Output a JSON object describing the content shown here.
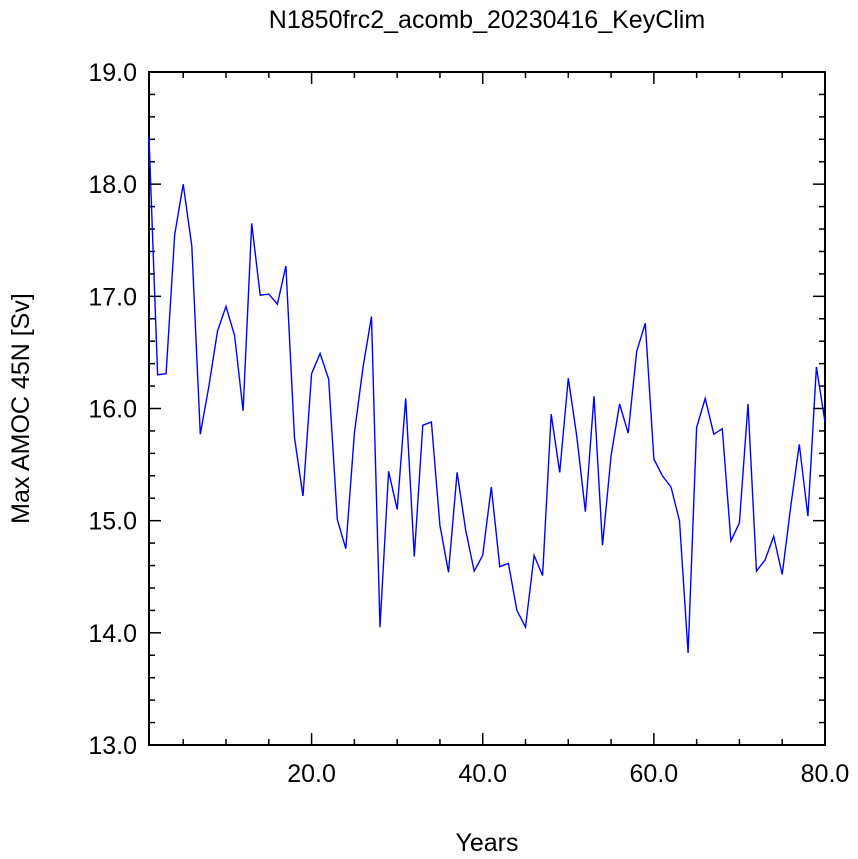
{
  "chart_data": {
    "type": "line",
    "title": "N1850frc2_acomb_20230416_KeyClim",
    "xlabel": "Years",
    "ylabel": "Max AMOC 45N [Sv]",
    "xlim": [
      1,
      80
    ],
    "ylim": [
      13.0,
      19.0
    ],
    "xticks": [
      20,
      40,
      60,
      80
    ],
    "xtick_labels": [
      "20.0",
      "40.0",
      "60.0",
      "80.0"
    ],
    "yticks": [
      13,
      14,
      15,
      16,
      17,
      18,
      19
    ],
    "ytick_labels": [
      "13.0",
      "14.0",
      "15.0",
      "16.0",
      "17.0",
      "18.0",
      "19.0"
    ],
    "grid": false,
    "series": [
      {
        "color": "#0000ff",
        "x": [
          1,
          2,
          3,
          4,
          5,
          6,
          7,
          8,
          9,
          10,
          11,
          12,
          13,
          14,
          15,
          16,
          17,
          18,
          19,
          20,
          21,
          22,
          23,
          24,
          25,
          26,
          27,
          28,
          29,
          30,
          31,
          32,
          33,
          34,
          35,
          36,
          37,
          38,
          39,
          40,
          41,
          42,
          43,
          44,
          45,
          46,
          47,
          48,
          49,
          50,
          51,
          52,
          53,
          54,
          55,
          56,
          57,
          58,
          59,
          60,
          61,
          62,
          63,
          64,
          65,
          66,
          67,
          68,
          69,
          70,
          71,
          72,
          73,
          74,
          75,
          76,
          77,
          78,
          79,
          80
        ],
        "values": [
          18.42,
          16.3,
          16.31,
          17.55,
          18.0,
          17.45,
          15.77,
          16.2,
          16.69,
          16.91,
          16.65,
          15.98,
          17.65,
          17.01,
          17.02,
          16.93,
          17.27,
          15.74,
          15.22,
          16.31,
          16.49,
          16.26,
          15.01,
          14.75,
          15.78,
          16.36,
          16.82,
          14.05,
          15.44,
          15.1,
          16.09,
          14.68,
          15.85,
          15.88,
          14.96,
          14.54,
          15.43,
          14.92,
          14.55,
          14.69,
          15.3,
          14.59,
          14.62,
          14.2,
          14.05,
          14.69,
          14.51,
          15.95,
          15.43,
          16.27,
          15.75,
          15.08,
          16.11,
          14.78,
          15.58,
          16.04,
          15.78,
          16.51,
          16.76,
          15.55,
          15.4,
          15.3,
          15.0,
          13.82,
          15.83,
          16.09,
          15.77,
          15.82,
          14.82,
          14.98,
          16.04,
          14.55,
          14.65,
          14.86,
          14.52,
          15.13,
          15.68,
          15.04,
          16.37,
          15.88
        ]
      }
    ]
  }
}
